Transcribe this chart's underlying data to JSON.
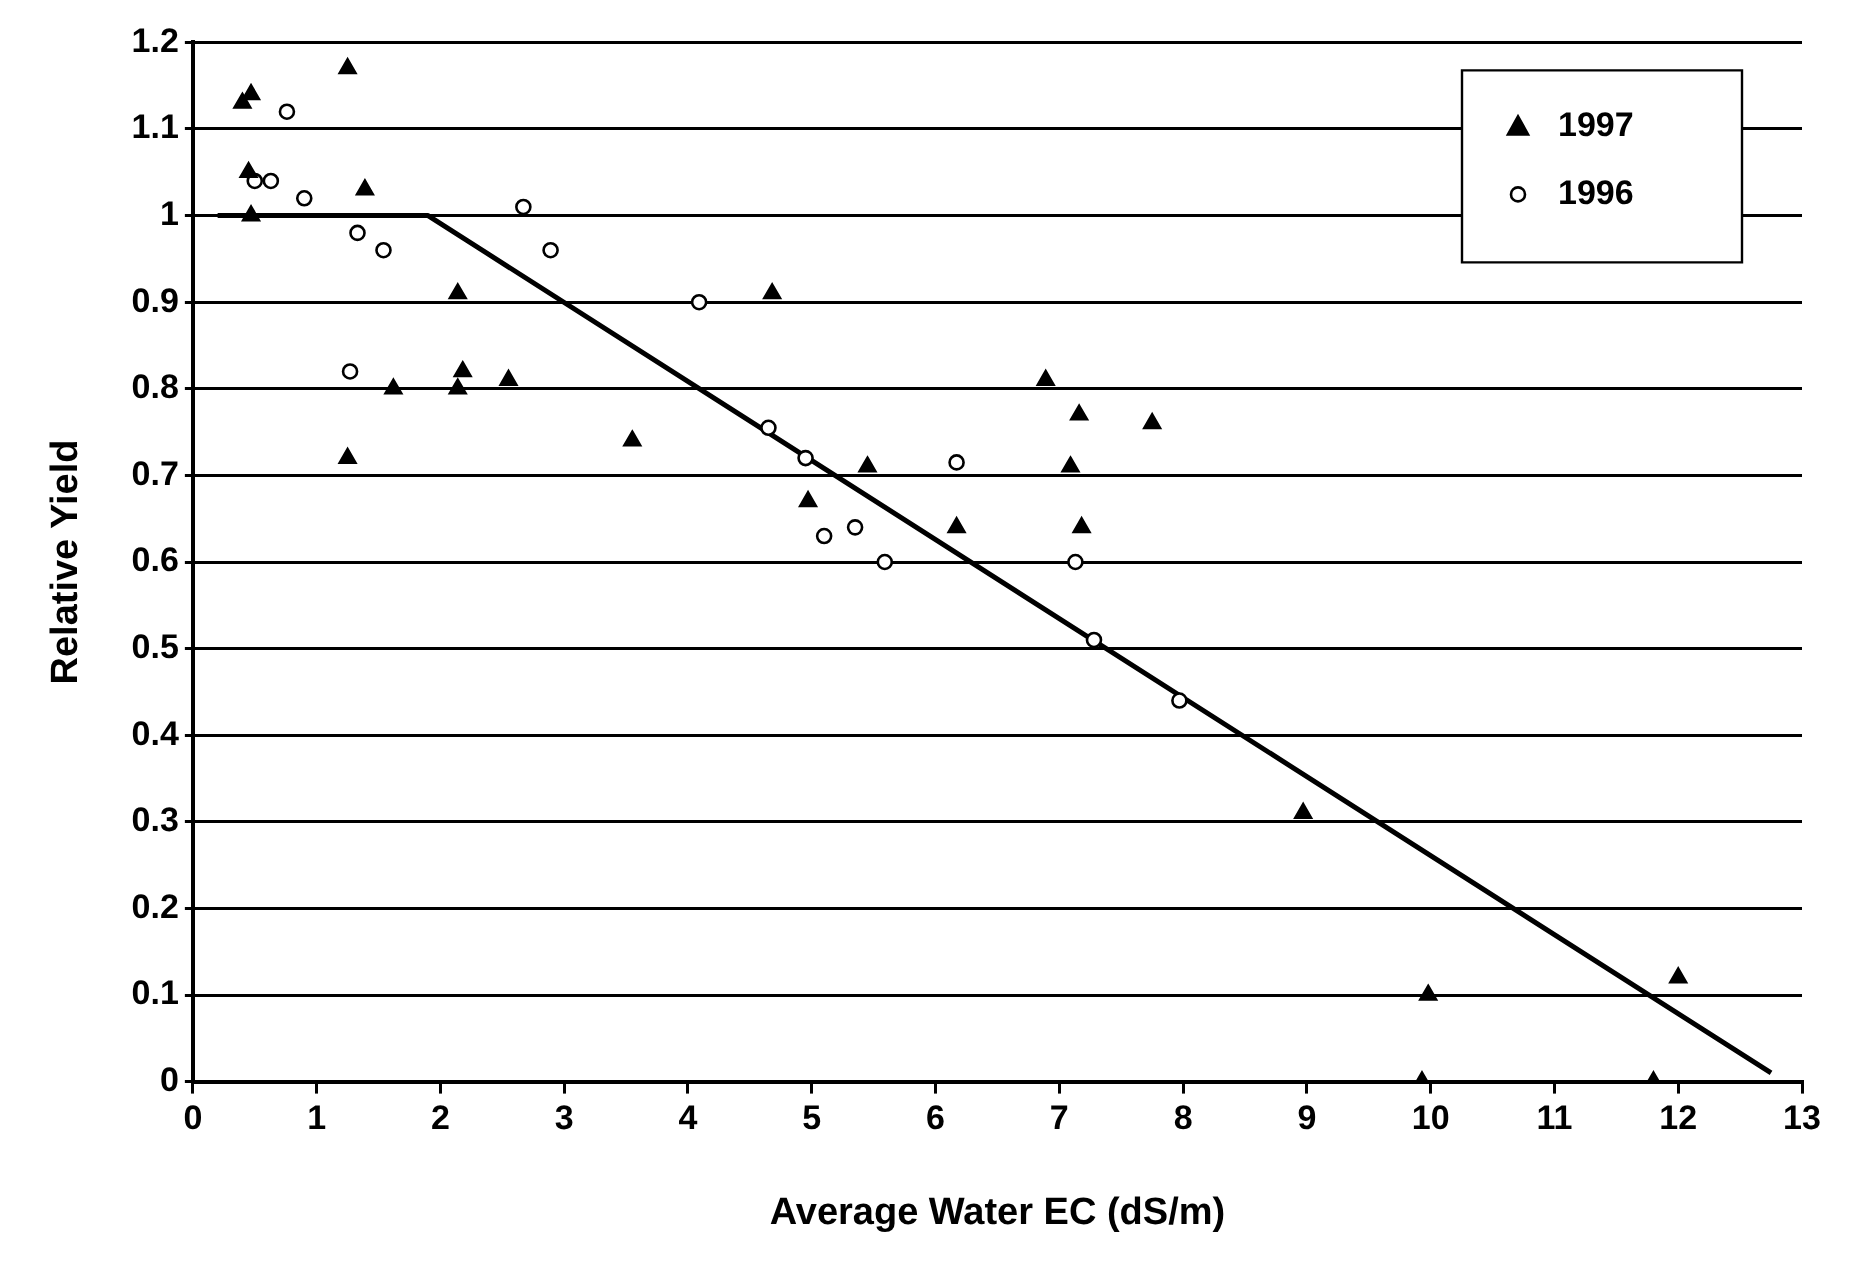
{
  "chart_data": {
    "type": "scatter",
    "xlabel": "Average Water EC (dS/m)",
    "ylabel": "Relative Yield",
    "xlim": [
      0,
      13
    ],
    "xticks": [
      0,
      1,
      2,
      3,
      4,
      5,
      6,
      7,
      8,
      9,
      10,
      11,
      12,
      13
    ],
    "ylim": [
      0,
      1.2
    ],
    "yticks": [
      0,
      0.1,
      0.2,
      0.3,
      0.4,
      0.5,
      0.6,
      0.7,
      0.8,
      0.9,
      1,
      1.1,
      1.2
    ],
    "grid": "y",
    "legend": "top right",
    "series": [
      {
        "name": "1997",
        "color": "#000000",
        "marker": "triangle",
        "x": [
          0.4,
          0.47,
          0.45,
          0.47,
          1.25,
          1.39,
          1.25,
          1.62,
          2.14,
          2.18,
          2.14,
          2.55,
          3.55,
          4.68,
          4.97,
          5.45,
          6.17,
          6.89,
          7.16,
          7.09,
          7.18,
          7.75,
          8.97,
          9.98,
          9.93,
          11.8,
          12.0
        ],
        "values": [
          1.13,
          1.14,
          1.05,
          1.0,
          1.17,
          1.03,
          0.72,
          0.8,
          0.8,
          0.82,
          0.91,
          0.81,
          0.74,
          0.91,
          0.67,
          0.71,
          0.64,
          0.81,
          0.77,
          0.71,
          0.64,
          0.76,
          0.31,
          0.1,
          0,
          0,
          0.12
        ]
      },
      {
        "name": "1996",
        "color": "#000000",
        "marker": "circle",
        "x": [
          0.76,
          0.5,
          0.63,
          0.9,
          1.33,
          1.54,
          1.27,
          2.67,
          2.89,
          4.09,
          4.65,
          4.95,
          5.1,
          5.35,
          5.59,
          6.17,
          7.13,
          7.28,
          7.97
        ],
        "values": [
          1.12,
          1.04,
          1.04,
          1.02,
          0.98,
          0.96,
          0.82,
          1.01,
          0.96,
          0.9,
          0.755,
          0.72,
          0.63,
          0.64,
          0.6,
          0.715,
          0.6,
          0.51,
          0.44
        ]
      },
      {
        "type": "line",
        "color": "#000000",
        "marker": "none",
        "x": [
          0.2,
          1.9,
          12.75
        ],
        "values": [
          1.0,
          1.0,
          0.01
        ]
      }
    ]
  }
}
